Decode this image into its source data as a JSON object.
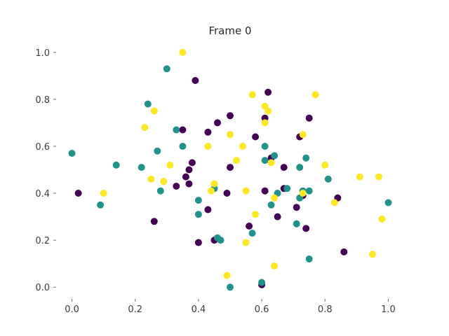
{
  "chart_data": {
    "type": "scatter",
    "title": "Frame 0",
    "xlabel": "",
    "ylabel": "",
    "xlim": [
      -0.05,
      1.05
    ],
    "ylim": [
      -0.05,
      1.05
    ],
    "xticks": [
      "0.0",
      "0.2",
      "0.4",
      "0.6",
      "0.8",
      "1.0"
    ],
    "yticks": [
      "0.0",
      "0.2",
      "0.4",
      "0.6",
      "0.8",
      "1.0"
    ],
    "grid": false,
    "series": [
      {
        "color": "#440154",
        "points": [
          [
            0.02,
            0.4
          ],
          [
            0.26,
            0.28
          ],
          [
            0.33,
            0.43
          ],
          [
            0.36,
            0.47
          ],
          [
            0.35,
            0.67
          ],
          [
            0.37,
            0.5
          ],
          [
            0.37,
            0.44
          ],
          [
            0.38,
            0.53
          ],
          [
            0.39,
            0.88
          ],
          [
            0.4,
            0.19
          ],
          [
            0.43,
            0.33
          ],
          [
            0.43,
            0.66
          ],
          [
            0.45,
            0.2
          ],
          [
            0.46,
            0.7
          ],
          [
            0.49,
            0.4
          ],
          [
            0.5,
            0.73
          ],
          [
            0.5,
            0.51
          ],
          [
            0.56,
            0.26
          ],
          [
            0.58,
            0.64
          ],
          [
            0.6,
            0.01
          ],
          [
            0.61,
            0.41
          ],
          [
            0.61,
            0.72
          ],
          [
            0.62,
            0.83
          ],
          [
            0.63,
            0.55
          ],
          [
            0.65,
            0.3
          ],
          [
            0.67,
            0.42
          ],
          [
            0.67,
            0.51
          ],
          [
            0.71,
            0.34
          ],
          [
            0.72,
            0.64
          ],
          [
            0.73,
            0.39
          ],
          [
            0.74,
            0.25
          ],
          [
            0.75,
            0.72
          ],
          [
            0.84,
            0.38
          ],
          [
            0.86,
            0.15
          ]
        ]
      },
      {
        "color": "#21918c",
        "points": [
          [
            0.0,
            0.57
          ],
          [
            0.09,
            0.35
          ],
          [
            0.14,
            0.52
          ],
          [
            0.22,
            0.51
          ],
          [
            0.24,
            0.78
          ],
          [
            0.27,
            0.58
          ],
          [
            0.28,
            0.41
          ],
          [
            0.3,
            0.93
          ],
          [
            0.33,
            0.67
          ],
          [
            0.35,
            0.6
          ],
          [
            0.4,
            0.31
          ],
          [
            0.4,
            0.37
          ],
          [
            0.45,
            0.42
          ],
          [
            0.46,
            0.21
          ],
          [
            0.47,
            0.2
          ],
          [
            0.5,
            0.0
          ],
          [
            0.57,
            0.23
          ],
          [
            0.6,
            0.02
          ],
          [
            0.61,
            0.6
          ],
          [
            0.61,
            0.54
          ],
          [
            0.63,
            0.35
          ],
          [
            0.64,
            0.56
          ],
          [
            0.65,
            0.4
          ],
          [
            0.68,
            0.42
          ],
          [
            0.71,
            0.27
          ],
          [
            0.72,
            0.38
          ],
          [
            0.72,
            0.51
          ],
          [
            0.73,
            0.41
          ],
          [
            0.74,
            0.55
          ],
          [
            0.75,
            0.41
          ],
          [
            0.75,
            0.12
          ],
          [
            0.81,
            0.46
          ],
          [
            1.0,
            0.36
          ]
        ]
      },
      {
        "color": "#fde725",
        "points": [
          [
            0.1,
            0.4
          ],
          [
            0.23,
            0.68
          ],
          [
            0.25,
            0.46
          ],
          [
            0.26,
            0.75
          ],
          [
            0.29,
            0.45
          ],
          [
            0.31,
            0.52
          ],
          [
            0.35,
            1.0
          ],
          [
            0.43,
            0.6
          ],
          [
            0.44,
            0.41
          ],
          [
            0.45,
            0.44
          ],
          [
            0.49,
            0.05
          ],
          [
            0.5,
            0.65
          ],
          [
            0.52,
            0.54
          ],
          [
            0.54,
            0.6
          ],
          [
            0.55,
            0.19
          ],
          [
            0.55,
            0.41
          ],
          [
            0.57,
            0.82
          ],
          [
            0.58,
            0.31
          ],
          [
            0.61,
            0.77
          ],
          [
            0.61,
            0.7
          ],
          [
            0.62,
            0.75
          ],
          [
            0.63,
            0.53
          ],
          [
            0.64,
            0.38
          ],
          [
            0.64,
            0.09
          ],
          [
            0.73,
            0.65
          ],
          [
            0.73,
            0.4
          ],
          [
            0.77,
            0.82
          ],
          [
            0.8,
            0.52
          ],
          [
            0.83,
            0.36
          ],
          [
            0.91,
            0.47
          ],
          [
            0.95,
            0.14
          ],
          [
            0.97,
            0.47
          ],
          [
            0.98,
            0.29
          ]
        ]
      }
    ]
  }
}
